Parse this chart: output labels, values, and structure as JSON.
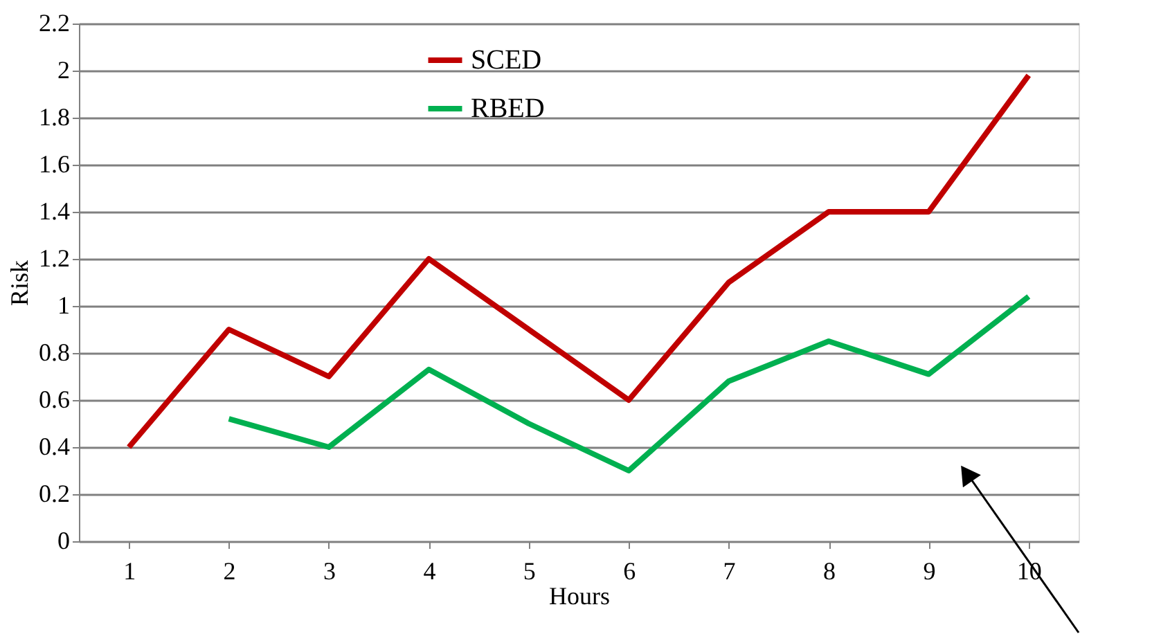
{
  "chart_data": {
    "type": "line",
    "xlabel": "Hours",
    "ylabel": "Risk",
    "categories": [
      "1",
      "2",
      "3",
      "4",
      "5",
      "6",
      "7",
      "8",
      "9",
      "10"
    ],
    "series": [
      {
        "name": "SCED",
        "color": "#c00000",
        "values": [
          0.4,
          0.9,
          0.7,
          1.2,
          0.9,
          0.6,
          1.1,
          1.4,
          1.4,
          1.98
        ]
      },
      {
        "name": "RBED",
        "color": "#00b050",
        "values": [
          null,
          0.52,
          0.4,
          0.73,
          0.5,
          0.3,
          0.68,
          0.85,
          0.71,
          1.04
        ]
      }
    ],
    "ylim": [
      0,
      2.2
    ],
    "yticks": [
      0,
      0.2,
      0.4,
      0.6,
      0.8,
      1,
      1.2,
      1.4,
      1.6,
      1.8,
      2,
      2.2
    ],
    "grid": "y",
    "legend": "top",
    "marker": "none",
    "line_style": "solid"
  }
}
